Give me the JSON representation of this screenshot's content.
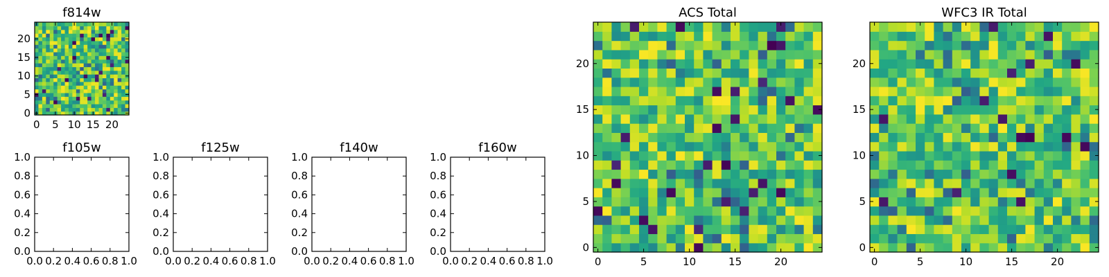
{
  "chart_data": [
    {
      "id": "f814w",
      "type": "heatmap",
      "title": "f814w",
      "grid_size": 25,
      "xlim": [
        -0.5,
        24.5
      ],
      "ylim": [
        -0.5,
        24.5
      ],
      "xticks": [
        0,
        5,
        10,
        15,
        20
      ],
      "xtick_labels": [
        "0",
        "5",
        "10",
        "15",
        "20"
      ],
      "yticks": [
        0,
        5,
        10,
        15,
        20
      ],
      "ytick_labels": [
        "0",
        "5",
        "10",
        "15",
        "20"
      ],
      "colormap": "viridis",
      "seed": 814
    },
    {
      "id": "f105w",
      "type": "heatmap",
      "title": "f105w",
      "empty": true,
      "xlim": [
        0,
        1
      ],
      "ylim": [
        0,
        1
      ],
      "xticks": [
        0,
        0.2,
        0.4,
        0.6,
        0.8,
        1.0
      ],
      "xtick_labels": [
        "0.0",
        "0.2",
        "0.4",
        "0.6",
        "0.8",
        "1.0"
      ],
      "yticks": [
        0,
        0.2,
        0.4,
        0.6,
        0.8,
        1.0
      ],
      "ytick_labels": [
        "0.0",
        "0.2",
        "0.4",
        "0.6",
        "0.8",
        "1.0"
      ]
    },
    {
      "id": "f125w",
      "type": "heatmap",
      "title": "f125w",
      "empty": true,
      "xlim": [
        0,
        1
      ],
      "ylim": [
        0,
        1
      ],
      "xticks": [
        0,
        0.2,
        0.4,
        0.6,
        0.8,
        1.0
      ],
      "xtick_labels": [
        "0.0",
        "0.2",
        "0.4",
        "0.6",
        "0.8",
        "1.0"
      ],
      "yticks": [
        0,
        0.2,
        0.4,
        0.6,
        0.8,
        1.0
      ],
      "ytick_labels": [
        "0.0",
        "0.2",
        "0.4",
        "0.6",
        "0.8",
        "1.0"
      ]
    },
    {
      "id": "f140w",
      "type": "heatmap",
      "title": "f140w",
      "empty": true,
      "xlim": [
        0,
        1
      ],
      "ylim": [
        0,
        1
      ],
      "xticks": [
        0,
        0.2,
        0.4,
        0.6,
        0.8,
        1.0
      ],
      "xtick_labels": [
        "0.0",
        "0.2",
        "0.4",
        "0.6",
        "0.8",
        "1.0"
      ],
      "yticks": [
        0,
        0.2,
        0.4,
        0.6,
        0.8,
        1.0
      ],
      "ytick_labels": [
        "0.0",
        "0.2",
        "0.4",
        "0.6",
        "0.8",
        "1.0"
      ]
    },
    {
      "id": "f160w",
      "type": "heatmap",
      "title": "f160w",
      "empty": true,
      "xlim": [
        0,
        1
      ],
      "ylim": [
        0,
        1
      ],
      "xticks": [
        0,
        0.2,
        0.4,
        0.6,
        0.8,
        1.0
      ],
      "xtick_labels": [
        "0.0",
        "0.2",
        "0.4",
        "0.6",
        "0.8",
        "1.0"
      ],
      "yticks": [
        0,
        0.2,
        0.4,
        0.6,
        0.8,
        1.0
      ],
      "ytick_labels": [
        "0.0",
        "0.2",
        "0.4",
        "0.6",
        "0.8",
        "1.0"
      ]
    },
    {
      "id": "acs-total",
      "type": "heatmap",
      "title": "ACS Total",
      "grid_size": 25,
      "xlim": [
        -0.5,
        24.5
      ],
      "ylim": [
        -0.5,
        24.5
      ],
      "xticks": [
        0,
        5,
        10,
        15,
        20
      ],
      "xtick_labels": [
        "0",
        "5",
        "10",
        "15",
        "20"
      ],
      "yticks": [
        0,
        5,
        10,
        15,
        20
      ],
      "ytick_labels": [
        "0",
        "5",
        "10",
        "15",
        "20"
      ],
      "colormap": "viridis",
      "seed": 1017
    },
    {
      "id": "wfc3-ir-total",
      "type": "heatmap",
      "title": "WFC3 IR Total",
      "grid_size": 25,
      "xlim": [
        -0.5,
        24.5
      ],
      "ylim": [
        -0.5,
        24.5
      ],
      "xticks": [
        0,
        5,
        10,
        15,
        20
      ],
      "xtick_labels": [
        "0",
        "5",
        "10",
        "15",
        "20"
      ],
      "yticks": [
        0,
        5,
        10,
        15,
        20
      ],
      "ytick_labels": [
        "0",
        "5",
        "10",
        "15",
        "20"
      ],
      "colormap": "viridis",
      "seed": 3160
    }
  ]
}
